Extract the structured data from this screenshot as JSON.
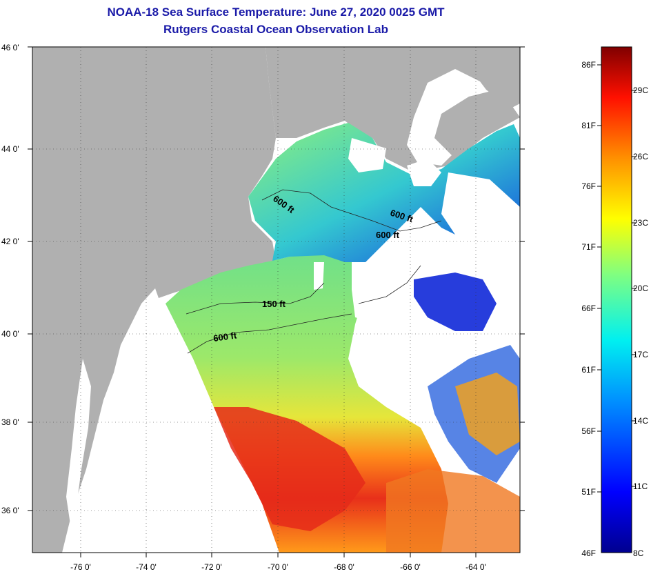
{
  "title": {
    "line1": "NOAA-18 Sea Surface Temperature:  June 27, 2020 0025 GMT",
    "line2": "Rutgers Coastal Ocean Observation Lab"
  },
  "axes": {
    "lat_labels": [
      "46 0'",
      "44 0'",
      "42 0'",
      "40 0'",
      "38 0'",
      "36 0'"
    ],
    "lon_labels": [
      "-76 0'",
      "-74 0'",
      "-72 0'",
      "-70 0'",
      "-68 0'",
      "-66 0'",
      "-64 0'"
    ]
  },
  "contours": [
    "600 ft",
    "600 ft",
    "600 ft",
    "150 ft",
    "600 ft"
  ],
  "colorbar": {
    "f_labels": [
      "86F",
      "81F",
      "76F",
      "71F",
      "66F",
      "61F",
      "56F",
      "51F",
      "46F"
    ],
    "c_labels": [
      "29C",
      "26C",
      "23C",
      "20C",
      "17C",
      "14C",
      "11C",
      "8C"
    ]
  },
  "colors": {
    "land": "#b0b0b0",
    "nodata": "#ffffff",
    "title": "#1a1aa8"
  }
}
